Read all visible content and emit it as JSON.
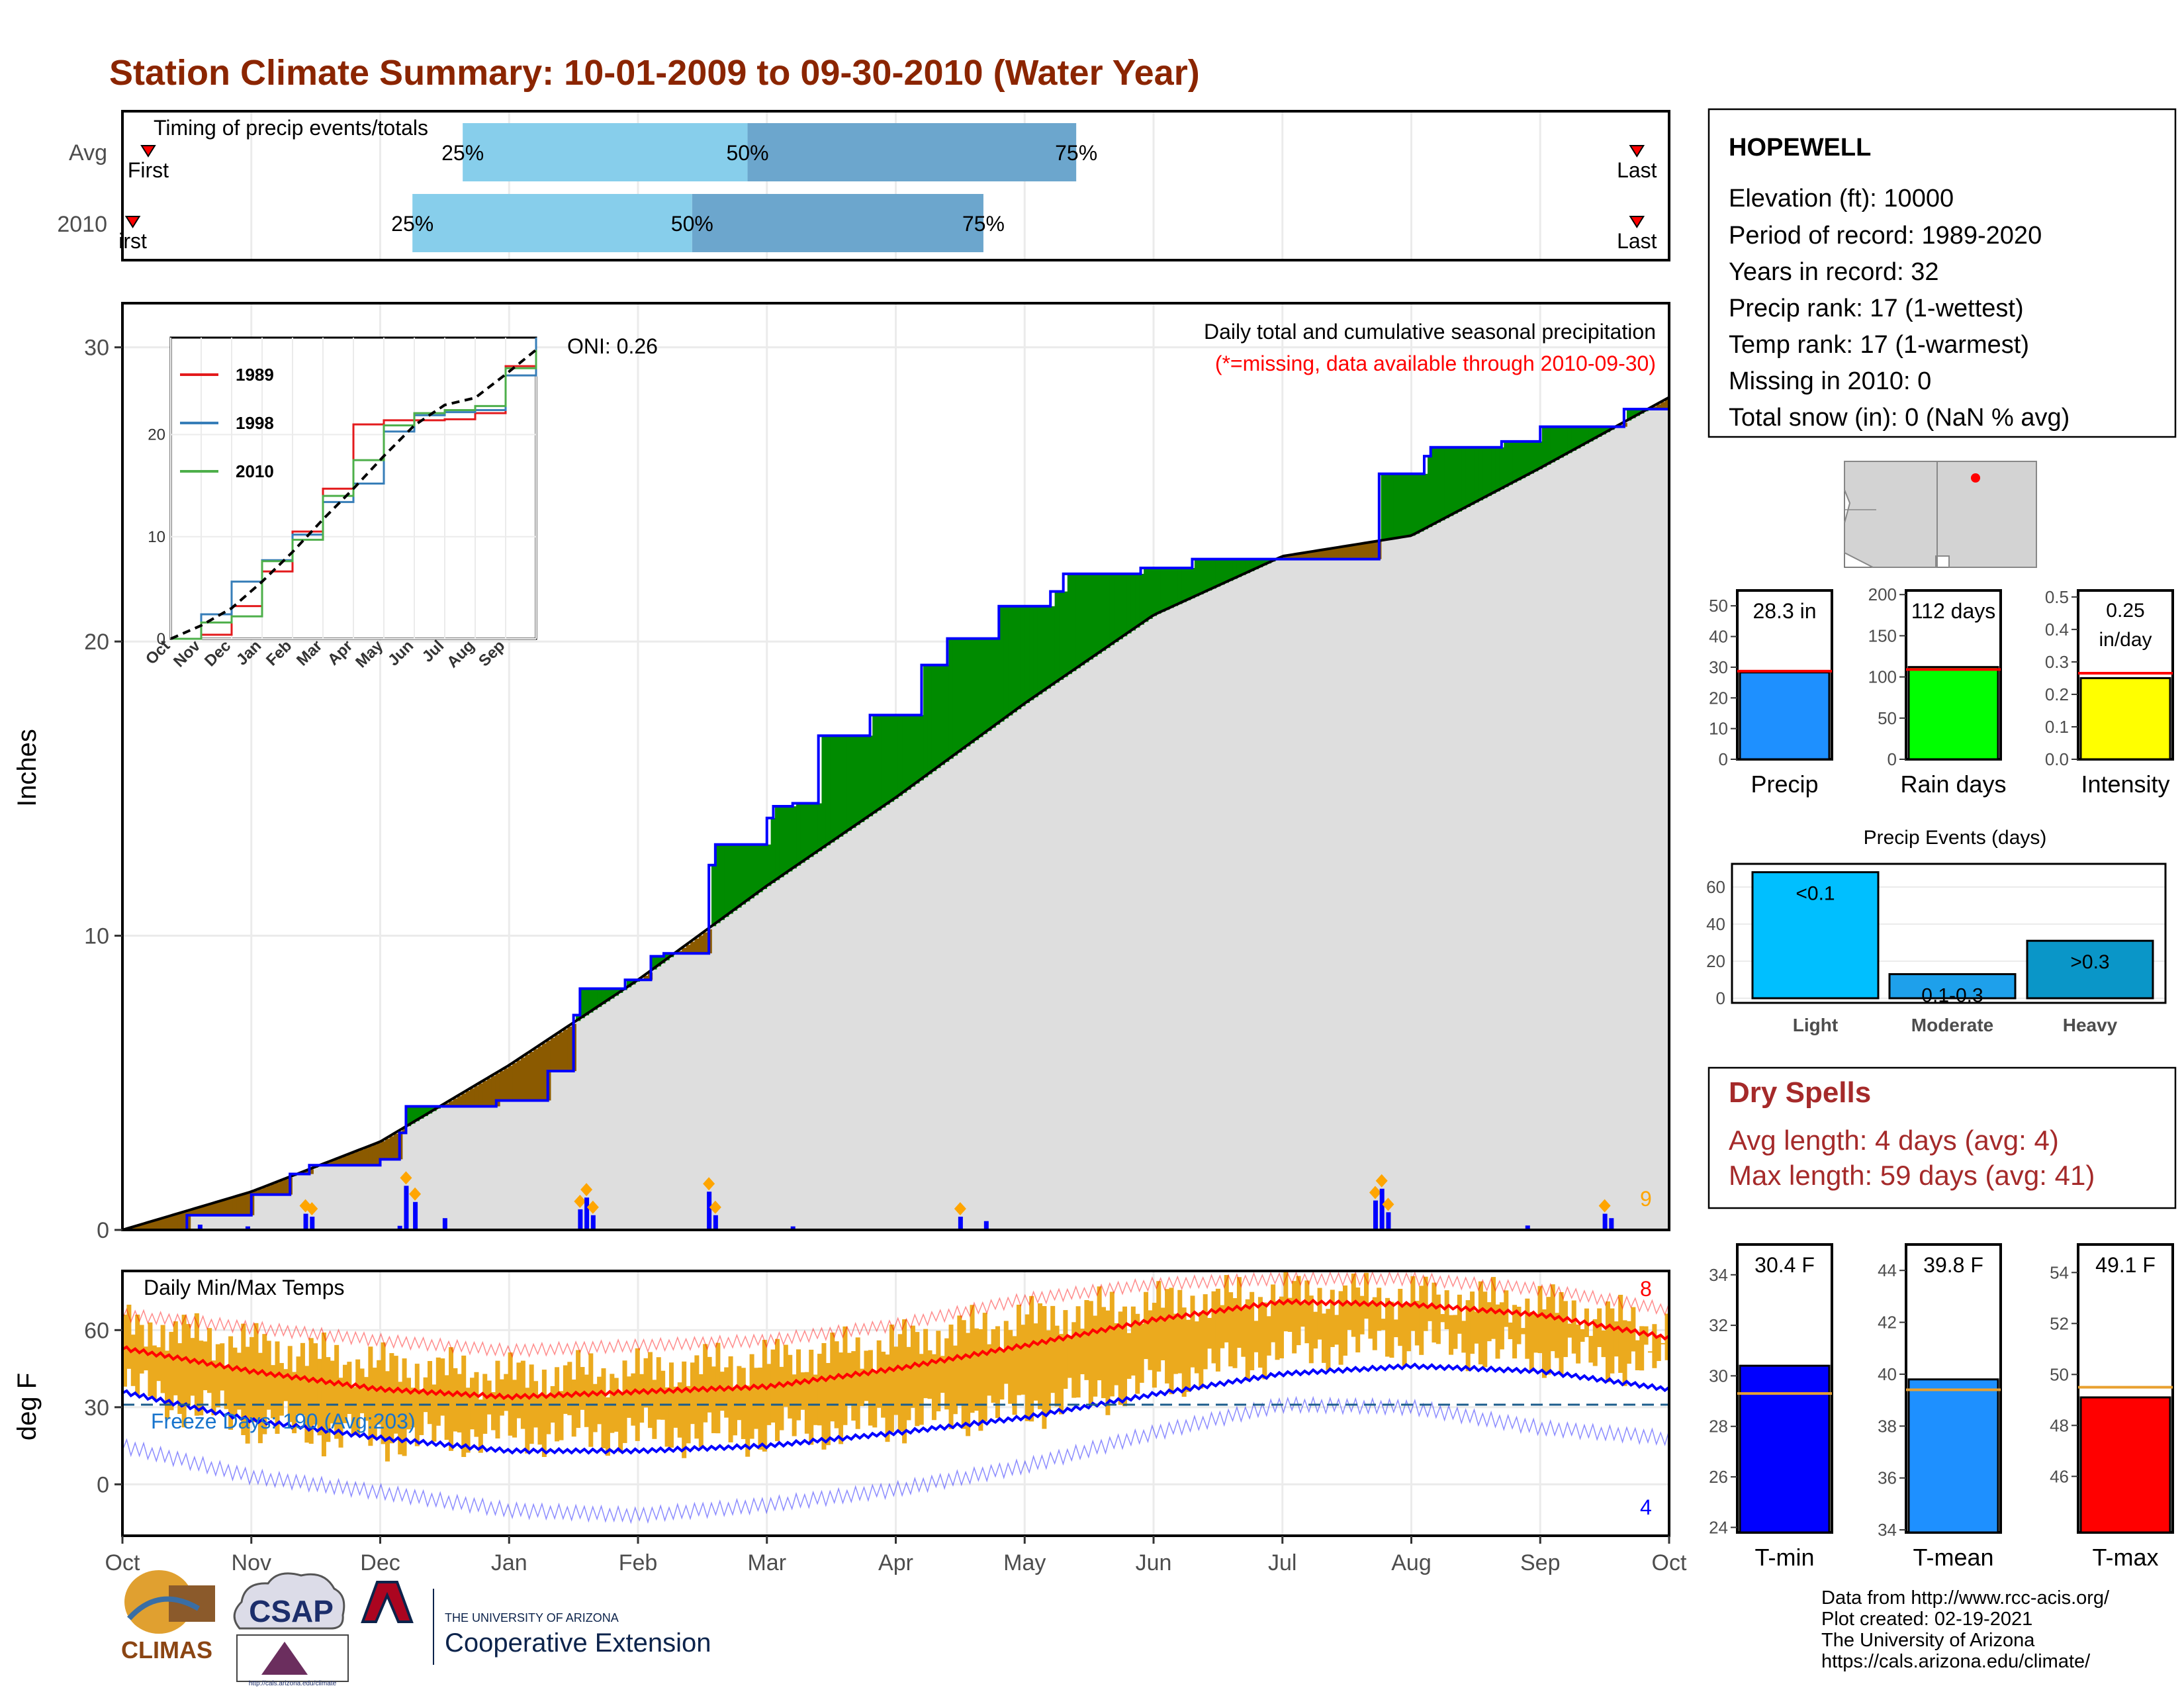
{
  "title": "Station Climate Summary: 10-01-2009 to 09-30-2010 (Water Year)",
  "colors": {
    "title": "#8B2500",
    "q_light": "#87CEEB",
    "q_dark": "#6CA6CD",
    "above_avg": "#008B00",
    "below_avg": "#8B5A00",
    "cumulative_fill": "#DEDEDE",
    "precip_bar": "#0000FF",
    "precip_marker": "#FFA500",
    "temp_bar": "#EBAA1E",
    "tmax_line": "#FF0000",
    "tmin_line": "#0000FF",
    "dry_spell_text": "#A52A2A"
  },
  "timing": {
    "label": "Timing of precip events/totals",
    "rows": [
      {
        "name": "Avg",
        "first": "First",
        "last": "Last",
        "q25": "25%",
        "q50": "50%",
        "q75": "75%",
        "q25_month": 2.64,
        "q50_month": 4.85,
        "q75_month": 7.4,
        "first_month": 0.2,
        "last_month": 11.75
      },
      {
        "name": "2010",
        "first": "irst",
        "last": "Last",
        "q25": "25%",
        "q50": "50%",
        "q75": "75%",
        "q25_month": 2.25,
        "q50_month": 4.42,
        "q75_month": 6.68,
        "first_month": 0.08,
        "last_month": 11.75
      }
    ]
  },
  "precip": {
    "ylabel": "Inches",
    "yticks": [
      0,
      10,
      20,
      30
    ],
    "ylim": [
      0,
      31.5
    ],
    "header": "Daily total and cumulative seasonal precipitation",
    "note": "(*=missing, data available through 2010-09-30)",
    "oni": "ONI: 0.26",
    "corner_count": "9",
    "chart_data": {
      "type": "area",
      "x_unit": "month offset from Oct 1",
      "series": [
        {
          "name": "2010",
          "x": [
            0,
            0.5,
            1.0,
            1.3,
            1.45,
            2.0,
            2.15,
            2.2,
            2.9,
            3.3,
            3.5,
            3.55,
            3.9,
            4.1,
            4.2,
            4.55,
            4.6,
            5.0,
            5.05,
            5.2,
            5.4,
            5.8,
            6.2,
            6.4,
            6.8,
            7.2,
            7.3,
            7.9,
            8.3,
            8.9,
            9.6,
            9.75,
            10.1,
            10.15,
            10.7,
            11.0,
            11.65,
            12.0
          ],
          "values": [
            0,
            0.5,
            1.2,
            1.9,
            2.2,
            2.4,
            3.3,
            4.2,
            4.4,
            5.4,
            7.3,
            8.2,
            8.5,
            9.3,
            9.4,
            12.4,
            13.1,
            14.0,
            14.4,
            14.5,
            16.8,
            17.5,
            19.2,
            20.1,
            21.2,
            21.7,
            22.3,
            22.5,
            22.8,
            22.8,
            22.8,
            25.7,
            26.3,
            26.6,
            26.8,
            27.3,
            27.9,
            28.3
          ]
        },
        {
          "name": "avg",
          "x": [
            0,
            1,
            2,
            3,
            4,
            5,
            6,
            7,
            8,
            9,
            10,
            11,
            12
          ],
          "values": [
            0,
            1.3,
            3.0,
            5.6,
            8.5,
            11.7,
            14.7,
            17.9,
            20.9,
            22.9,
            23.6,
            25.9,
            28.3
          ]
        }
      ],
      "daily_events": [
        {
          "x": 0.6,
          "v": 0.18
        },
        {
          "x": 0.97,
          "v": 0.12
        },
        {
          "x": 1.42,
          "v": 0.55
        },
        {
          "x": 1.47,
          "v": 0.45
        },
        {
          "x": 2.15,
          "v": 0.14
        },
        {
          "x": 2.2,
          "v": 1.5
        },
        {
          "x": 2.27,
          "v": 0.95
        },
        {
          "x": 2.5,
          "v": 0.4
        },
        {
          "x": 3.55,
          "v": 0.7
        },
        {
          "x": 3.6,
          "v": 1.1
        },
        {
          "x": 3.65,
          "v": 0.5
        },
        {
          "x": 4.55,
          "v": 1.3
        },
        {
          "x": 4.6,
          "v": 0.5
        },
        {
          "x": 5.2,
          "v": 0.12
        },
        {
          "x": 6.5,
          "v": 0.45
        },
        {
          "x": 6.7,
          "v": 0.3
        },
        {
          "x": 9.72,
          "v": 1.0
        },
        {
          "x": 9.77,
          "v": 1.4
        },
        {
          "x": 9.82,
          "v": 0.6
        },
        {
          "x": 10.9,
          "v": 0.15
        },
        {
          "x": 11.5,
          "v": 0.55
        },
        {
          "x": 11.55,
          "v": 0.4
        }
      ]
    }
  },
  "inset": {
    "chart_data": {
      "type": "line",
      "x_labels": [
        "Oct",
        "Nov",
        "Dec",
        "Jan",
        "Feb",
        "Mar",
        "Apr",
        "May",
        "Jun",
        "Jul",
        "Aug",
        "Sep"
      ],
      "yticks": [
        0,
        10,
        20
      ],
      "ylim": [
        0,
        29.5
      ],
      "series": [
        {
          "name": "1989",
          "color": "#E31A1C",
          "values": [
            0,
            0.4,
            3.2,
            6.6,
            10.5,
            14.7,
            21.0,
            21.4,
            21.4,
            21.5,
            22.1,
            26.7,
            29.5
          ]
        },
        {
          "name": "1998",
          "color": "#377EB8",
          "values": [
            0,
            2.4,
            5.6,
            7.7,
            10.2,
            13.4,
            15.2,
            20.3,
            21.9,
            22.2,
            22.4,
            25.8,
            29.5
          ]
        },
        {
          "name": "2010",
          "color": "#4DAF4A",
          "values": [
            0,
            1.6,
            2.2,
            7.6,
            9.7,
            14.0,
            17.5,
            20.9,
            22.1,
            22.4,
            22.8,
            26.5,
            28.3
          ]
        },
        {
          "name": "avg",
          "color": "#000000",
          "dashed": true,
          "values": [
            0,
            1.3,
            3.0,
            5.6,
            8.5,
            11.7,
            14.7,
            17.9,
            20.9,
            22.9,
            23.6,
            25.9,
            28.3
          ]
        }
      ]
    }
  },
  "temps": {
    "ylabel": "deg F",
    "label": "Daily Min/Max Temps",
    "freeze": "Freeze Days: 190 (Avg:203)",
    "freeze_line": 31,
    "yticks": [
      0,
      30,
      60
    ],
    "ylim": [
      -20,
      83
    ],
    "count_top": "8",
    "count_bottom": "4",
    "chart_data": {
      "type": "line",
      "x_unit": "month offset from Oct 1",
      "avg_max": {
        "x": [
          0,
          1,
          2,
          3,
          4,
          5,
          6,
          7,
          8,
          9,
          10,
          11,
          12
        ],
        "values": [
          53,
          44,
          37,
          34,
          36,
          38,
          45,
          54,
          64,
          71,
          70,
          66,
          57
        ]
      },
      "avg_min": {
        "x": [
          0,
          1,
          2,
          3,
          4,
          5,
          6,
          7,
          8,
          9,
          10,
          11,
          12
        ],
        "values": [
          36,
          25,
          18,
          13,
          13,
          15,
          20,
          26,
          35,
          43,
          46,
          44,
          37
        ]
      },
      "record_max": {
        "x": [
          0,
          1,
          2,
          3,
          4,
          5,
          6,
          7,
          8,
          9,
          10,
          11,
          12
        ],
        "values": [
          66,
          61,
          56,
          52,
          54,
          56,
          62,
          72,
          78,
          80,
          80,
          76,
          68
        ]
      },
      "record_min": {
        "x": [
          0,
          1,
          2,
          3,
          4,
          5,
          6,
          7,
          8,
          9,
          10,
          11,
          12
        ],
        "values": [
          15,
          3,
          -3,
          -10,
          -12,
          -8,
          -2,
          7,
          20,
          31,
          30,
          22,
          18
        ]
      },
      "daily_range": {
        "x": [
          0,
          1,
          2,
          3,
          4,
          5,
          6,
          7,
          8,
          9,
          10,
          11,
          12
        ],
        "low": [
          38,
          24,
          18,
          20,
          20,
          20,
          25,
          30,
          40,
          52,
          56,
          50,
          46
        ],
        "high": [
          62,
          54,
          46,
          42,
          44,
          48,
          55,
          64,
          70,
          74,
          73,
          70,
          60
        ]
      }
    }
  },
  "x_months": [
    "Oct",
    "Nov",
    "Dec",
    "Jan",
    "Feb",
    "Mar",
    "Apr",
    "May",
    "Jun",
    "Jul",
    "Aug",
    "Sep",
    "Oct"
  ],
  "station": {
    "name": "HOPEWELL",
    "lines": [
      "Elevation (ft): 10000",
      "Period of record: 1989-2020",
      "Years in record: 32",
      "Precip rank: 17 (1-wettest)",
      "Temp rank: 17 (1-warmest)",
      "Missing in 2010: 0",
      "Total snow (in): 0 (NaN % avg)"
    ]
  },
  "summary_bars": [
    {
      "label": "Precip",
      "value_text": "28.3 in",
      "value": 28.3,
      "avg": 28.7,
      "ylim": [
        0,
        55
      ],
      "yticks": [
        0,
        10,
        20,
        30,
        40,
        50
      ],
      "color": "#1E90FF"
    },
    {
      "label": "Rain days",
      "value_text": "112 days",
      "value": 112,
      "avg": 109,
      "ylim": [
        0,
        205
      ],
      "yticks": [
        0,
        50,
        100,
        150,
        200
      ],
      "color": "#00FF00"
    },
    {
      "label": "Intensity",
      "value_text1": "0.25",
      "value_text2": "in/day",
      "value": 0.25,
      "avg": 0.265,
      "ylim": [
        0,
        0.52
      ],
      "yticks": [
        "0.0",
        "0.1",
        "0.2",
        "0.3",
        "0.4",
        "0.5"
      ],
      "color": "#FFFF00"
    }
  ],
  "events": {
    "title": "Precip Events (days)",
    "chart_data": {
      "type": "bar",
      "categories": [
        "Light",
        "Moderate",
        "Heavy"
      ],
      "bar_labels": [
        "<0.1",
        "0.1-0.3",
        ">0.3"
      ],
      "values": [
        68,
        13,
        31
      ],
      "colors": [
        "#00BFFF",
        "#1EA0EB",
        "#0A96C8"
      ],
      "ylim": [
        0,
        70
      ],
      "yticks": [
        0,
        20,
        40,
        60
      ]
    }
  },
  "dry_spells": {
    "title": "Dry Spells",
    "avg": "Avg length: 4 days (avg: 4)",
    "max": "Max length: 59 days (avg: 41)"
  },
  "temp_bars": [
    {
      "label": "T-min",
      "value_text": "30.4 F",
      "value": 30.4,
      "avg": 29.3,
      "ylim": [
        23.8,
        35.2
      ],
      "yticks": [
        24,
        26,
        28,
        30,
        32,
        34
      ],
      "color": "#0000FF"
    },
    {
      "label": "T-mean",
      "value_text": "39.8 F",
      "value": 39.8,
      "avg": 39.4,
      "ylim": [
        33.9,
        45.0
      ],
      "yticks": [
        34,
        36,
        38,
        40,
        42,
        44
      ],
      "color": "#1E90FF"
    },
    {
      "label": "T-max",
      "value_text": "49.1 F",
      "value": 49.1,
      "avg": 49.5,
      "ylim": [
        43.8,
        55.1
      ],
      "yticks": [
        46,
        48,
        50,
        52,
        54
      ],
      "color": "#FF0000"
    }
  ],
  "logos": {
    "climas": "CLIMAS",
    "csap": "CSAP",
    "csap_url": "http://cals.arizona.edu/climate",
    "ua_small": "THE UNIVERSITY OF ARIZONA",
    "ua_large": "Cooperative Extension"
  },
  "credits": [
    "Data from http://www.rcc-acis.org/",
    "Plot created: 02-19-2021",
    "The University of Arizona",
    "https://cals.arizona.edu/climate/"
  ]
}
